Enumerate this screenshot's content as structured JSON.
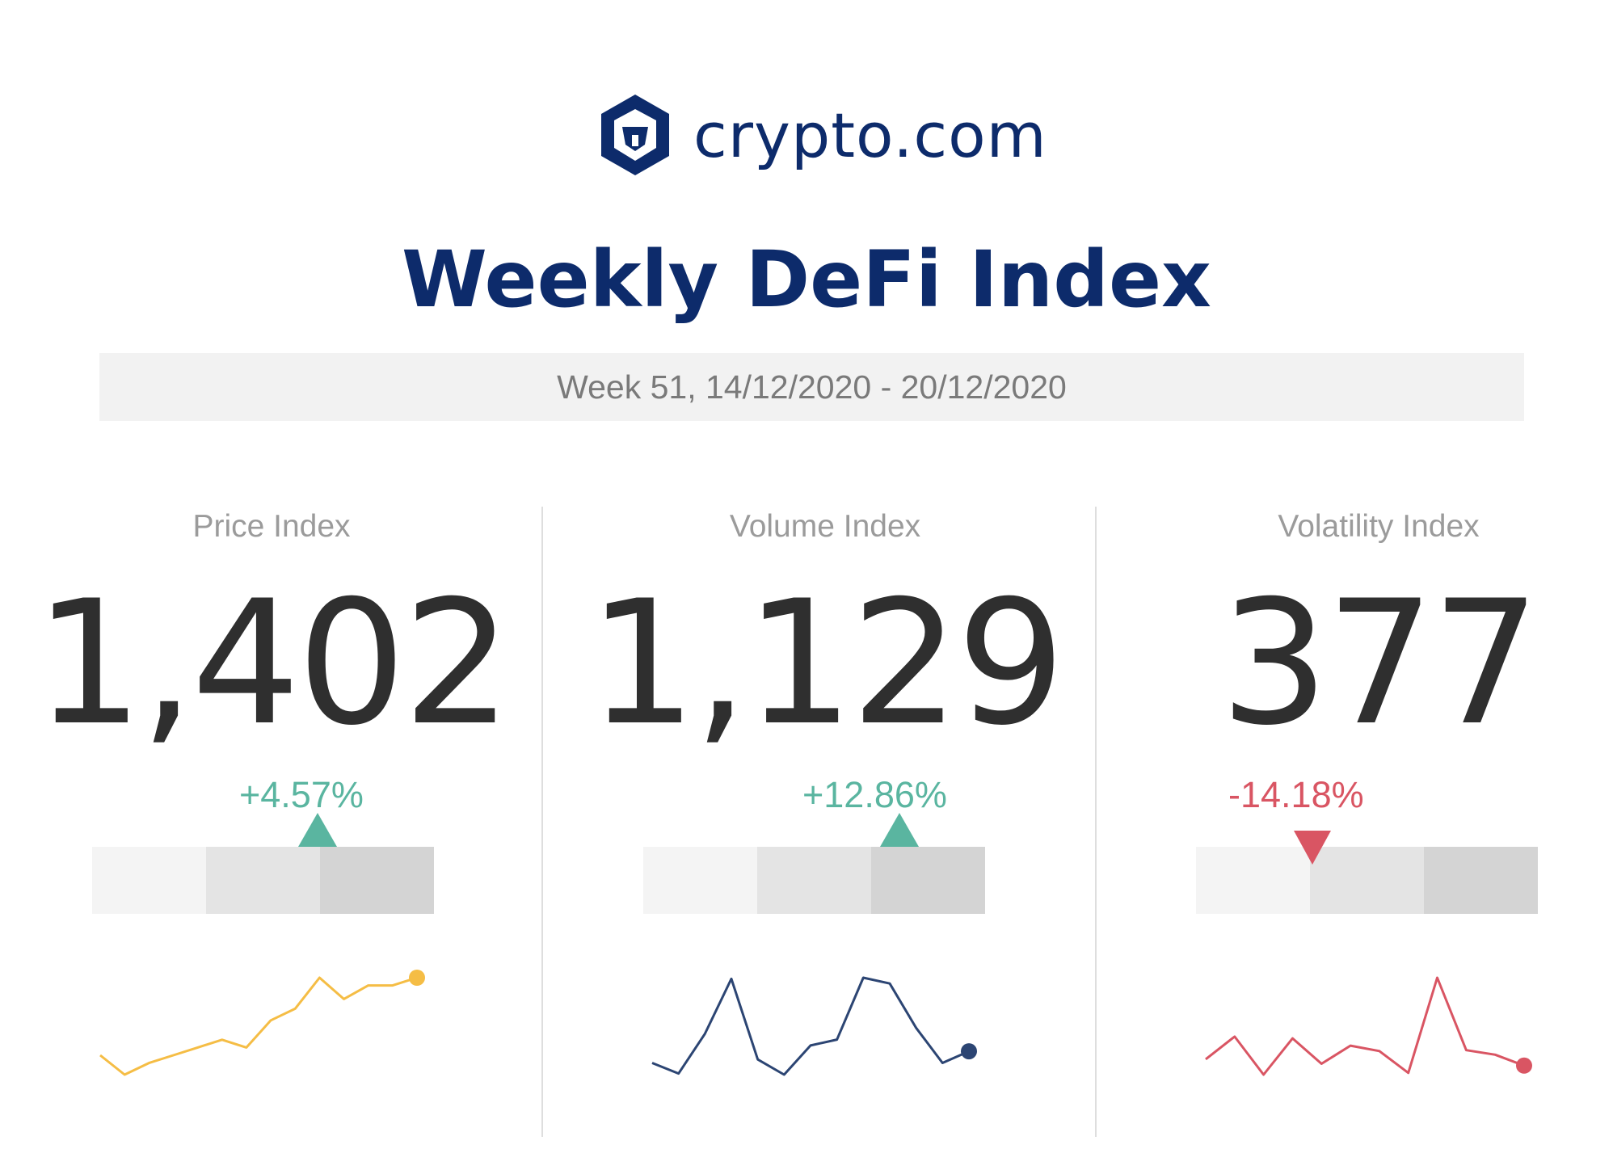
{
  "brand": {
    "name": "crypto.com",
    "color": "#0d2b6b",
    "icon": "crypto-com-lion-shield-icon"
  },
  "title": "Weekly DeFi Index",
  "subtitle": "Week 51, 14/12/2020 - 20/12/2020",
  "colors": {
    "up": "#5ab5a0",
    "down": "#d95563",
    "price_line": "#f5bd45",
    "volume_line": "#2c4573",
    "volatility_line": "#d95563"
  },
  "indices": [
    {
      "label": "Price Index",
      "value": "1,402",
      "change": "+4.57%",
      "direction": "up",
      "marker_position": 0.66
    },
    {
      "label": "Volume Index",
      "value": "1,129",
      "change": "+12.86%",
      "direction": "up",
      "marker_position": 0.75
    },
    {
      "label": "Volatility Index",
      "value": "377",
      "change": "-14.18%",
      "direction": "down",
      "marker_position": 0.34
    }
  ],
  "chart_data": [
    {
      "type": "line",
      "series": [
        {
          "values": [
            1372,
            1362,
            1368,
            1372,
            1376,
            1380,
            1376,
            1390,
            1396,
            1412,
            1401,
            1408,
            1408,
            1412
          ]
        }
      ],
      "color": "#f5bd45",
      "end_marker": true
    },
    {
      "type": "line",
      "series": [
        {
          "values": [
            1060,
            1051,
            1085,
            1132,
            1063,
            1050,
            1075,
            1080,
            1133,
            1128,
            1090,
            1060,
            1070
          ]
        }
      ],
      "color": "#2c4573",
      "end_marker": true
    },
    {
      "type": "line",
      "series": [
        {
          "values": [
            395,
            420,
            378,
            418,
            390,
            410,
            404,
            380,
            485,
            405,
            400,
            388
          ]
        }
      ],
      "color": "#d95563",
      "end_marker": true
    }
  ]
}
